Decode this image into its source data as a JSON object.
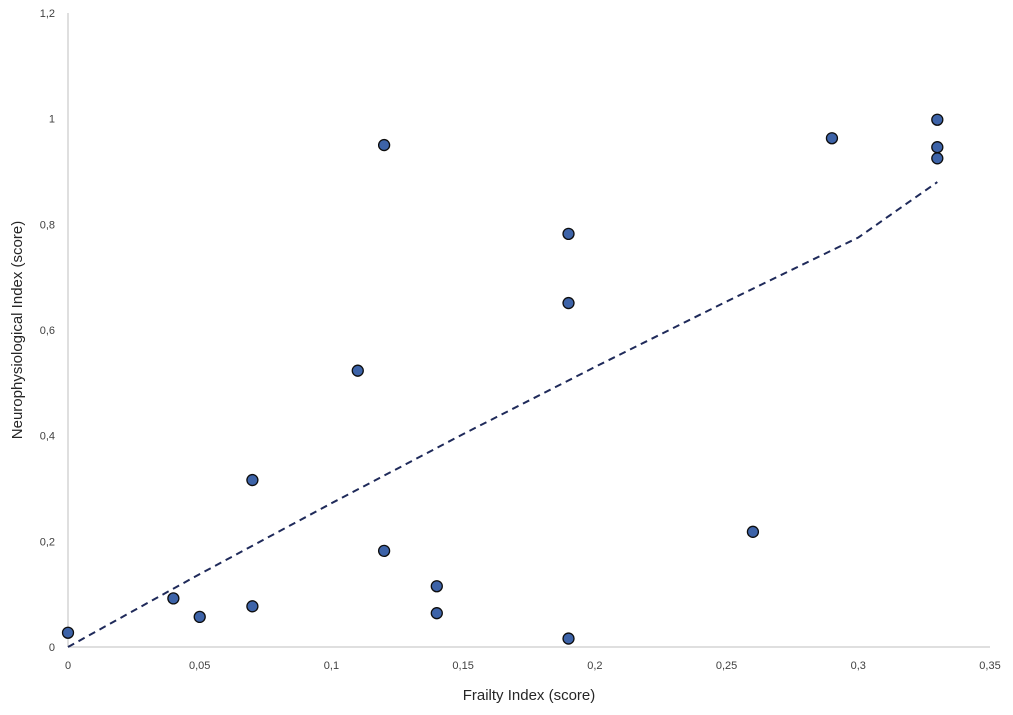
{
  "chart_data": {
    "type": "scatter",
    "title": "",
    "xlabel": "Frailty Index (score)",
    "ylabel": "Neurophysiological Index (score)",
    "xlim": [
      0,
      0.35
    ],
    "ylim": [
      0,
      1.2
    ],
    "x_ticks": [
      0,
      0.05,
      0.1,
      0.15,
      0.2,
      0.25,
      0.3,
      0.35
    ],
    "x_tick_labels": [
      "0",
      "0,05",
      "0,1",
      "0,15",
      "0,2",
      "0,25",
      "0,3",
      "0,35"
    ],
    "y_ticks": [
      0,
      0.2,
      0.4,
      0.6,
      0.8,
      1.0,
      1.2
    ],
    "y_tick_labels": [
      "0",
      "0,2",
      "0,4",
      "0,6",
      "0,8",
      "1",
      "1,2"
    ],
    "grid": false,
    "legend": false,
    "series": [
      {
        "marker_color": "#3d63a8",
        "marker_edge_color": "#0d0d0d",
        "points": [
          {
            "x": 0.0,
            "y": 0.027
          },
          {
            "x": 0.04,
            "y": 0.092
          },
          {
            "x": 0.05,
            "y": 0.057
          },
          {
            "x": 0.07,
            "y": 0.316
          },
          {
            "x": 0.07,
            "y": 0.077
          },
          {
            "x": 0.11,
            "y": 0.523
          },
          {
            "x": 0.12,
            "y": 0.95
          },
          {
            "x": 0.12,
            "y": 0.182
          },
          {
            "x": 0.14,
            "y": 0.115
          },
          {
            "x": 0.14,
            "y": 0.064
          },
          {
            "x": 0.19,
            "y": 0.782
          },
          {
            "x": 0.19,
            "y": 0.651
          },
          {
            "x": 0.19,
            "y": 0.016
          },
          {
            "x": 0.26,
            "y": 0.218
          },
          {
            "x": 0.29,
            "y": 0.963
          },
          {
            "x": 0.33,
            "y": 0.998
          },
          {
            "x": 0.33,
            "y": 0.946
          },
          {
            "x": 0.33,
            "y": 0.925
          }
        ]
      }
    ],
    "trendline": {
      "style": "dashed",
      "color": "#1f2a5a",
      "points": [
        {
          "x": 0.0,
          "y": 0.0
        },
        {
          "x": 0.05,
          "y": 0.138
        },
        {
          "x": 0.1,
          "y": 0.272
        },
        {
          "x": 0.15,
          "y": 0.403
        },
        {
          "x": 0.2,
          "y": 0.53
        },
        {
          "x": 0.25,
          "y": 0.654
        },
        {
          "x": 0.3,
          "y": 0.775
        },
        {
          "x": 0.33,
          "y": 0.88
        }
      ]
    },
    "axis_color": "#bfbfbf"
  }
}
